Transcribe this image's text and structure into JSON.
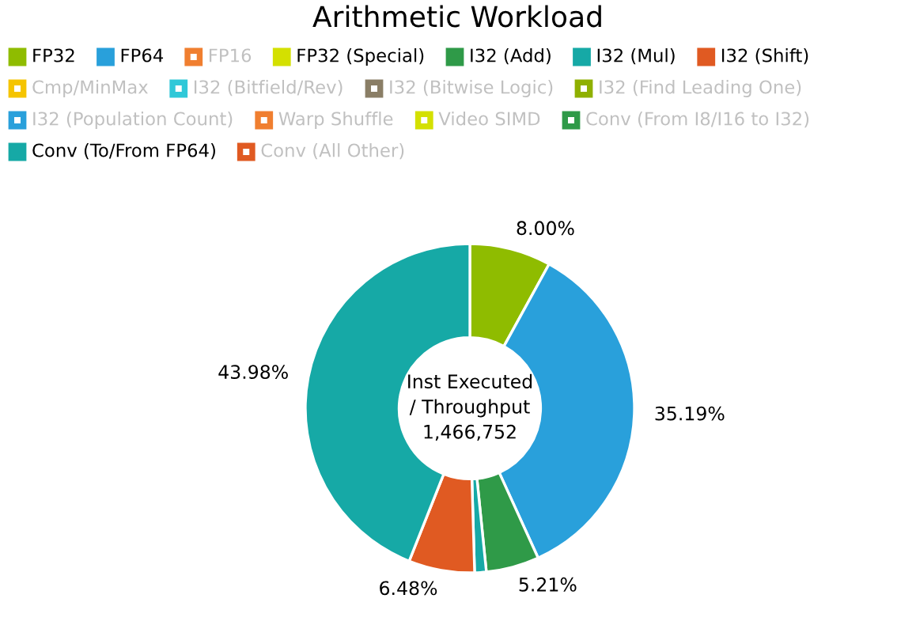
{
  "chart_data": {
    "type": "donut",
    "title": "Arithmetic Workload",
    "legend": "top",
    "categories": [
      "FP32",
      "FP64",
      "FP16",
      "FP32 (Special)",
      "I32 (Add)",
      "I32 (Mul)",
      "I32 (Shift)",
      "Cmp/MinMax",
      "I32 (Bitfield/Rev)",
      "I32 (Bitwise Logic)",
      "I32 (Find Leading One)",
      "I32 (Population Count)",
      "Warp Shuffle",
      "Video SIMD",
      "Conv (From I8/I16 to I32)",
      "Conv (To/From FP64)",
      "Conv (All Other)"
    ],
    "values": [
      8.0,
      35.19,
      null,
      0,
      5.21,
      1.14,
      6.48,
      null,
      null,
      null,
      null,
      null,
      null,
      null,
      null,
      43.98,
      null
    ],
    "value_labels": [
      "8.00%",
      "35.19%",
      null,
      null,
      "5.21%",
      null,
      "6.48%",
      null,
      null,
      null,
      null,
      null,
      null,
      null,
      null,
      "43.98%",
      null
    ],
    "colors": [
      "#8fbc00",
      "#29a0db",
      "#f07f30",
      "#d4e000",
      "#2f9a48",
      "#16a9a6",
      "#e05a22",
      "#f5c400",
      "#30c8d8",
      "#8a7e66",
      "#8fb000",
      "#29a0db",
      "#f07f30",
      "#d4e000",
      "#2f9a48",
      "#16a9a6",
      "#e05a22"
    ],
    "annotations": [
      "Inst Executed\n/ Throughput\n1,466,752"
    ]
  }
}
